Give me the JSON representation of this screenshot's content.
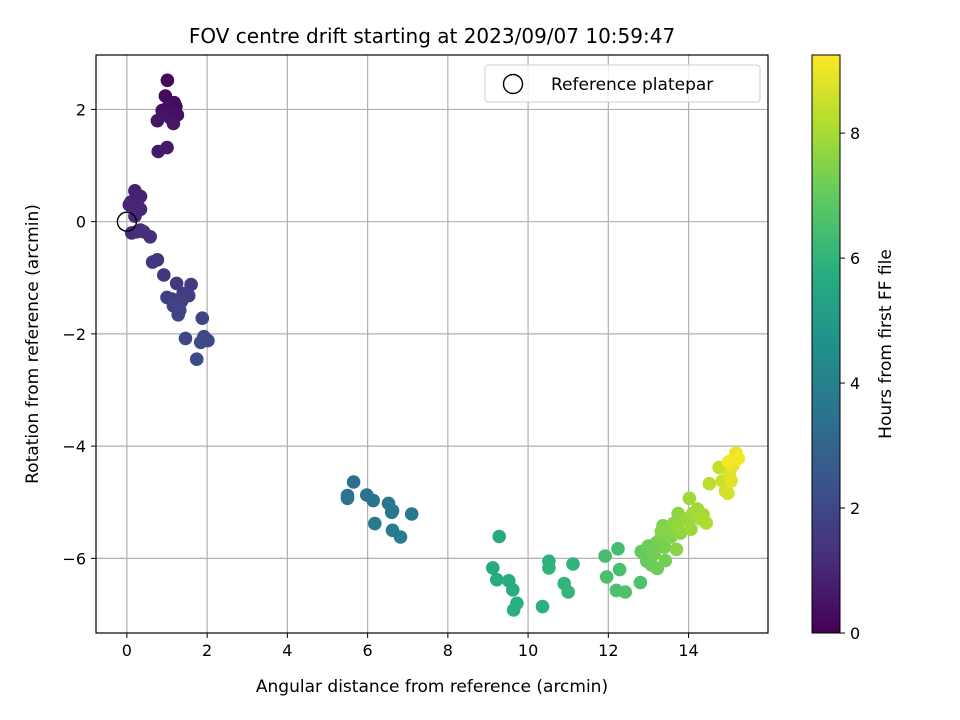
{
  "chart_data": {
    "type": "scatter",
    "title": "FOV centre drift starting at 2023/09/07 10:59:47",
    "xlabel": "Angular distance from reference (arcmin)",
    "ylabel": "Rotation from reference (arcmin)",
    "xlim": [
      -0.77,
      15.98
    ],
    "ylim": [
      -7.33,
      2.97
    ],
    "xticks": [
      0,
      2,
      4,
      6,
      8,
      10,
      12,
      14
    ],
    "xtick_labels": [
      "0",
      "2",
      "4",
      "6",
      "8",
      "10",
      "12",
      "14"
    ],
    "yticks": [
      2,
      0,
      -2,
      -4,
      -6
    ],
    "ytick_labels": [
      "2",
      "0",
      "−2",
      "−4",
      "−6"
    ],
    "grid": true,
    "legend": {
      "position": "top-right",
      "label": "Reference platepar",
      "marker": "open-circle"
    },
    "reference_point": {
      "x": 0,
      "y": 0
    },
    "colorbar": {
      "label": "Hours from first FF file",
      "range": [
        0,
        9.25
      ],
      "ticks": [
        0,
        2,
        4,
        6,
        8
      ],
      "tick_labels": [
        "0",
        "2",
        "4",
        "6",
        "8"
      ],
      "colormap": "viridis"
    },
    "points": [
      [
        1.01,
        2.52,
        0.18
      ],
      [
        0.96,
        2.24,
        0.22
      ],
      [
        1.18,
        2.12,
        0.26
      ],
      [
        1.22,
        2.05,
        0.3
      ],
      [
        1.0,
        2.02,
        0.34
      ],
      [
        0.88,
        1.98,
        0.38
      ],
      [
        1.26,
        1.9,
        0.42
      ],
      [
        1.08,
        1.85,
        0.46
      ],
      [
        0.9,
        1.9,
        0.5
      ],
      [
        0.76,
        1.8,
        0.54
      ],
      [
        1.16,
        1.75,
        0.58
      ],
      [
        1.0,
        1.32,
        0.62
      ],
      [
        0.78,
        1.25,
        0.66
      ],
      [
        0.2,
        0.55,
        0.82
      ],
      [
        0.34,
        0.45,
        0.86
      ],
      [
        0.1,
        0.35,
        0.9
      ],
      [
        0.26,
        0.3,
        0.94
      ],
      [
        0.06,
        0.3,
        0.98
      ],
      [
        0.34,
        0.22,
        1.02
      ],
      [
        0.2,
        0.1,
        1.06
      ],
      [
        0.12,
        -0.2,
        1.1
      ],
      [
        0.24,
        -0.18,
        1.14
      ],
      [
        0.34,
        -0.15,
        1.18
      ],
      [
        0.42,
        -0.18,
        1.22
      ],
      [
        0.58,
        -0.27,
        1.26
      ],
      [
        0.76,
        -0.68,
        1.4
      ],
      [
        0.64,
        -0.72,
        1.44
      ],
      [
        0.92,
        -0.95,
        1.48
      ],
      [
        1.24,
        -1.1,
        1.52
      ],
      [
        1.6,
        -1.12,
        1.56
      ],
      [
        1.4,
        -1.28,
        1.6
      ],
      [
        1.54,
        -1.32,
        1.64
      ],
      [
        1.0,
        -1.35,
        1.68
      ],
      [
        1.12,
        -1.38,
        1.72
      ],
      [
        1.36,
        -1.42,
        1.76
      ],
      [
        1.16,
        -1.5,
        1.8
      ],
      [
        1.32,
        -1.58,
        1.84
      ],
      [
        1.28,
        -1.66,
        1.88
      ],
      [
        1.88,
        -1.72,
        1.92
      ],
      [
        1.46,
        -2.08,
        1.96
      ],
      [
        1.92,
        -2.05,
        2.0
      ],
      [
        2.02,
        -2.12,
        2.04
      ],
      [
        1.84,
        -2.15,
        2.08
      ],
      [
        1.74,
        -2.45,
        2.12
      ],
      [
        5.65,
        -4.64,
        3.4
      ],
      [
        5.5,
        -4.88,
        3.44
      ],
      [
        5.98,
        -4.87,
        3.48
      ],
      [
        5.5,
        -4.93,
        3.52
      ],
      [
        6.14,
        -4.97,
        3.56
      ],
      [
        6.52,
        -5.02,
        3.6
      ],
      [
        6.62,
        -5.15,
        3.64
      ],
      [
        6.6,
        -5.18,
        3.68
      ],
      [
        7.1,
        -5.21,
        3.72
      ],
      [
        6.18,
        -5.38,
        3.76
      ],
      [
        6.62,
        -5.5,
        3.8
      ],
      [
        6.82,
        -5.62,
        3.84
      ],
      [
        9.28,
        -5.61,
        5.6
      ],
      [
        9.12,
        -6.17,
        5.64
      ],
      [
        9.22,
        -6.38,
        5.68
      ],
      [
        9.52,
        -6.4,
        5.72
      ],
      [
        9.62,
        -6.56,
        5.76
      ],
      [
        9.72,
        -6.8,
        5.8
      ],
      [
        9.64,
        -6.92,
        5.84
      ],
      [
        10.36,
        -6.86,
        5.88
      ],
      [
        10.52,
        -6.05,
        5.92
      ],
      [
        10.52,
        -6.17,
        5.96
      ],
      [
        11.12,
        -6.1,
        6.0
      ],
      [
        10.9,
        -6.45,
        6.04
      ],
      [
        11.0,
        -6.6,
        6.08
      ],
      [
        12.24,
        -5.83,
        6.4
      ],
      [
        11.92,
        -5.96,
        6.44
      ],
      [
        12.28,
        -6.2,
        6.48
      ],
      [
        11.96,
        -6.33,
        6.52
      ],
      [
        12.2,
        -6.57,
        6.56
      ],
      [
        12.42,
        -6.6,
        6.6
      ],
      [
        12.8,
        -6.43,
        6.64
      ],
      [
        12.82,
        -5.88,
        7.0
      ],
      [
        12.96,
        -6.05,
        7.04
      ],
      [
        13.08,
        -6.12,
        7.08
      ],
      [
        13.0,
        -5.78,
        7.12
      ],
      [
        13.22,
        -6.18,
        7.16
      ],
      [
        13.2,
        -5.72,
        7.2
      ],
      [
        13.14,
        -5.92,
        7.24
      ],
      [
        13.42,
        -6.04,
        7.28
      ],
      [
        13.4,
        -5.8,
        7.32
      ],
      [
        13.3,
        -5.65,
        7.36
      ],
      [
        13.36,
        -5.42,
        7.4
      ],
      [
        13.48,
        -5.5,
        7.44
      ],
      [
        13.56,
        -5.62,
        7.48
      ],
      [
        13.32,
        -5.52,
        7.52
      ],
      [
        13.7,
        -5.84,
        7.56
      ],
      [
        13.74,
        -5.2,
        7.6
      ],
      [
        13.62,
        -5.38,
        7.64
      ],
      [
        13.8,
        -5.55,
        7.68
      ],
      [
        13.9,
        -5.3,
        7.72
      ],
      [
        13.72,
        -5.45,
        7.76
      ],
      [
        14.0,
        -5.32,
        7.8
      ],
      [
        14.06,
        -5.48,
        7.84
      ],
      [
        14.02,
        -4.93,
        7.88
      ],
      [
        14.1,
        -5.2,
        7.92
      ],
      [
        14.22,
        -5.12,
        7.96
      ],
      [
        14.36,
        -5.22,
        8.0
      ],
      [
        14.3,
        -5.3,
        8.04
      ],
      [
        14.44,
        -5.37,
        8.08
      ],
      [
        14.52,
        -4.67,
        8.3
      ],
      [
        14.76,
        -4.38,
        8.4
      ],
      [
        14.84,
        -4.62,
        8.5
      ],
      [
        14.92,
        -4.8,
        8.6
      ],
      [
        14.98,
        -4.84,
        8.68
      ],
      [
        15.02,
        -4.5,
        8.76
      ],
      [
        15.06,
        -4.62,
        8.84
      ],
      [
        15.1,
        -4.35,
        8.92
      ],
      [
        15.18,
        -4.12,
        9.0
      ],
      [
        15.24,
        -4.22,
        9.1
      ],
      [
        15.0,
        -4.28,
        9.15
      ]
    ]
  }
}
